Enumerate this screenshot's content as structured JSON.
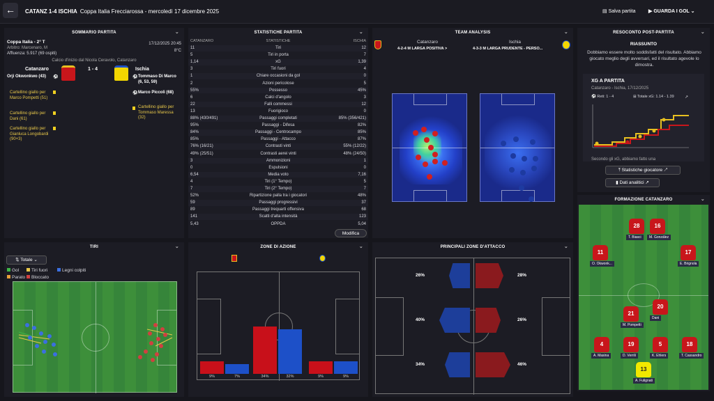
{
  "header": {
    "score_title": "CATANZ 1-4 ISCHIA",
    "subtitle": "Coppa Italia Frecciarossa - mercoledì 17 dicembre 2025",
    "save_label": "Salva partita",
    "watch_label": "GUARDA I GOL"
  },
  "summary": {
    "title": "SOMMARIO PARTITA",
    "competition": "Coppa Italia - 2° T",
    "datetime": "17/12/2025 20:45",
    "referee": "Arbitro: Marcenaro, M",
    "temperature": "8°C",
    "attendance": "Affluenza: 5.917 (69 ospiti)",
    "kickoff": "Calcio d'inizio dal Nicola Ceravolo, Catanzaro",
    "home_team": "Catanzaro",
    "away_team": "Ischia",
    "score": "1 - 4",
    "home_events": [
      "Orji Okwonkwo (43)",
      "Cartellino giallo per Marco Pompetti (51)",
      "Cartellino giallo per Dani (61)",
      "Cartellino giallo per Gianluca Longobardi (90+3)"
    ],
    "away_events": [
      "Tommaso Di Marco (6, 53, 59)",
      "Marco Piccoli (68)",
      "Cartellino giallo per Tommaso Maressa (32)"
    ]
  },
  "stats": {
    "title": "STATISTICHE PARTITA",
    "col_home": "CATANZARO",
    "col_label": "STATISTICHE",
    "col_away": "ISCHIA",
    "rows": [
      {
        "h": "11",
        "l": "Tiri",
        "a": "12"
      },
      {
        "h": "5",
        "l": "Tiri in porta",
        "a": "7"
      },
      {
        "h": "1,14",
        "l": "xG",
        "a": "1,39"
      },
      {
        "h": "3",
        "l": "Tiri fuori",
        "a": "4"
      },
      {
        "h": "1",
        "l": "Chiare occasioni da gol",
        "a": "0"
      },
      {
        "h": "2",
        "l": "Azioni pericolose",
        "a": "5"
      },
      {
        "h": "55%",
        "l": "Possesso",
        "a": "45%"
      },
      {
        "h": "6",
        "l": "Calci d'angolo",
        "a": "3"
      },
      {
        "h": "22",
        "l": "Falli commessi",
        "a": "12"
      },
      {
        "h": "13",
        "l": "Fuorigioco",
        "a": "0"
      },
      {
        "h": "88% (430/491)",
        "l": "Passaggi completati",
        "a": "85% (356/421)"
      },
      {
        "h": "95%",
        "l": "Passaggi - Difesa",
        "a": "82%"
      },
      {
        "h": "84%",
        "l": "Passaggi - Centrocampo",
        "a": "85%"
      },
      {
        "h": "85%",
        "l": "Passaggi - Attacco",
        "a": "87%"
      },
      {
        "h": "76% (16/21)",
        "l": "Contrasti vinti",
        "a": "55% (12/22)"
      },
      {
        "h": "49% (25/51)",
        "l": "Contrasti aerei vinti",
        "a": "48% (24/50)"
      },
      {
        "h": "3",
        "l": "Ammonizioni",
        "a": "1"
      },
      {
        "h": "0",
        "l": "Espulsioni",
        "a": "0"
      },
      {
        "h": "6,54",
        "l": "Media voto",
        "a": "7,16"
      },
      {
        "h": "4",
        "l": "Tiri (1° Tempo)",
        "a": "5"
      },
      {
        "h": "7",
        "l": "Tiri (2° Tempo)",
        "a": "7"
      },
      {
        "h": "52%",
        "l": "Ripartizione palla tra i giocatori",
        "a": "48%"
      },
      {
        "h": "59",
        "l": "Passaggi progressivi",
        "a": "37"
      },
      {
        "h": "89",
        "l": "Passaggi trequarti offensiva",
        "a": "68"
      },
      {
        "h": "141",
        "l": "Scatti d'alta intensità",
        "a": "123"
      },
      {
        "h": "5,43",
        "l": "OPPDA",
        "a": "5,04"
      }
    ],
    "edit_label": "Modifica"
  },
  "team_analysis": {
    "title": "TEAM ANALYSIS",
    "home": "Catanzaro",
    "home_formation": "4-2-4 M LARGA POSITIVA >",
    "away": "Ischia",
    "away_formation": "4-3-3 M LARGA PRUDENTE - PERSO..."
  },
  "report": {
    "title": "RESOCONTO POST-PARTITA",
    "summary_title": "RIASSUNTO",
    "summary_text": "Dobbiamo essere molto soddisfatti del risultato. Abbiamo giocato meglio degli avversari, ed il risultato agevole lo dimostra.",
    "xg_title": "XG A PARTITA",
    "xg_match": "Catanzaro - Ischia, 17/12/2025",
    "xg_goals": "Reti: 1 - 4",
    "xg_total": "Totale xG: 1.14 - 1.39",
    "xg_caption": "Secondo gli xG, abbiamo fatto una",
    "btn_stats": "Statistiche giocatore",
    "btn_analytics": "Dati analitici"
  },
  "shots": {
    "title": "TIRI",
    "filter": "Totale",
    "legend": [
      {
        "label": "Gol",
        "color": "#3fb648"
      },
      {
        "label": "Tiri fuori",
        "color": "#e8c84a"
      },
      {
        "label": "Legni colpiti",
        "color": "#3b6fe0"
      },
      {
        "label": "Parato",
        "color": "#e8a03a"
      },
      {
        "label": "Bloccato",
        "color": "#d04040"
      }
    ]
  },
  "zones": {
    "title": "ZONE DI AZIONE",
    "home_color": "#c8101a",
    "away_color": "#1d50c8",
    "pairs": [
      {
        "h": 9,
        "a": 7,
        "hl": "9%",
        "al": "7%"
      },
      {
        "h": 34,
        "a": 32,
        "hl": "34%",
        "al": "32%"
      },
      {
        "h": 9,
        "a": 9,
        "hl": "9%",
        "al": "9%"
      }
    ]
  },
  "attack": {
    "title": "PRINCIPALI ZONE D'ATTACCO",
    "home": [
      "26%",
      "40%",
      "34%"
    ],
    "away": [
      "28%",
      "26%",
      "46%"
    ]
  },
  "lineup": {
    "title": "FORMAZIONE CATANZARO",
    "players": [
      {
        "n": "28",
        "name": "T. Biasci"
      },
      {
        "n": "16",
        "name": "M. González"
      },
      {
        "n": "11",
        "name": "O. Okwonk..."
      },
      {
        "n": "17",
        "name": "E. Brignola"
      },
      {
        "n": "21",
        "name": "M. Pompetti"
      },
      {
        "n": "20",
        "name": "Dani"
      },
      {
        "n": "4",
        "name": "A. Masina"
      },
      {
        "n": "19",
        "name": "D. Verrili"
      },
      {
        "n": "5",
        "name": "K. Ehlers"
      },
      {
        "n": "18",
        "name": "T. Cassandro"
      },
      {
        "n": "13",
        "name": "A. Fulignati"
      }
    ]
  }
}
